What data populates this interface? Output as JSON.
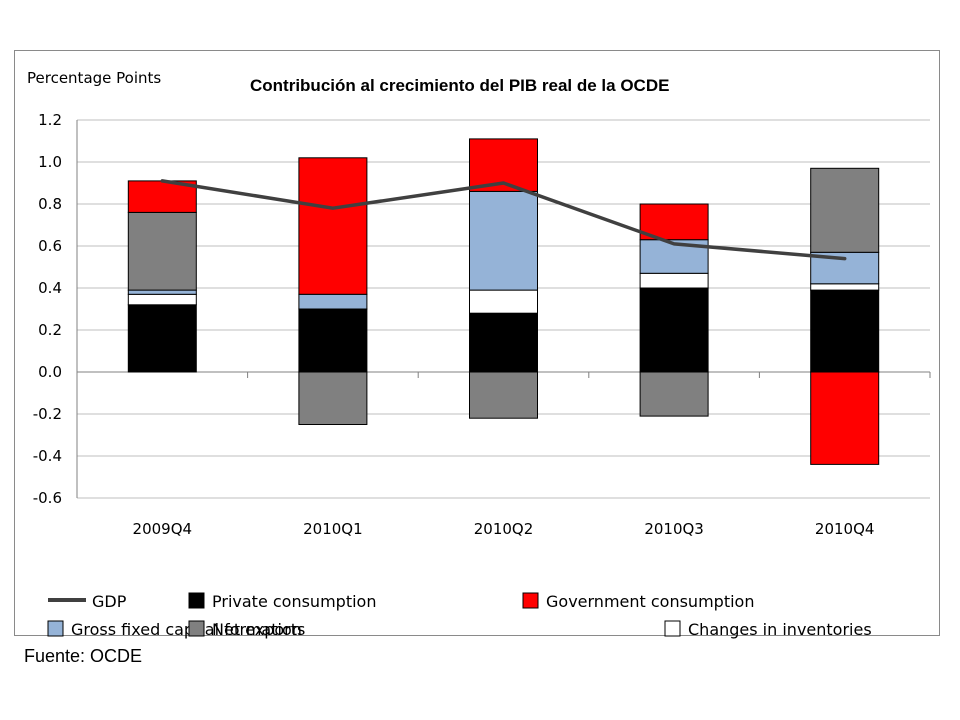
{
  "title": "Contribución al crecimiento del PIB real de la OCDE",
  "source": "Fuente: OCDE",
  "chart_data": {
    "type": "bar",
    "stacked": true,
    "ylabel": "Percentage Points",
    "ylim": [
      -0.6,
      1.2
    ],
    "yticks": [
      "1.2",
      "1.0",
      "0.8",
      "0.6",
      "0.4",
      "0.2",
      "0.0",
      "-0.2",
      "-0.4",
      "-0.6"
    ],
    "grid": true,
    "categories": [
      "2009Q4",
      "2010Q1",
      "2010Q2",
      "2010Q3",
      "2010Q4"
    ],
    "series": [
      {
        "name": "Private consumption",
        "color": "#000000",
        "values": [
          0.32,
          0.3,
          0.28,
          0.4,
          0.39
        ]
      },
      {
        "name": "Changes in inventories",
        "color": "#ffffff",
        "values": [
          0.05,
          0.0,
          0.11,
          0.07,
          0.03
        ]
      },
      {
        "name": "Gross fixed capital formation",
        "color": "#95b3d7",
        "values": [
          0.02,
          0.07,
          0.47,
          0.16,
          0.15
        ]
      },
      {
        "name": "Net exports",
        "color": "#808080",
        "values": [
          0.37,
          -0.25,
          -0.22,
          -0.21,
          0.4
        ]
      },
      {
        "name": "Government consumption",
        "color": "#ff0000",
        "values": [
          0.15,
          0.65,
          0.25,
          0.17,
          -0.44
        ]
      }
    ],
    "line": {
      "name": "GDP",
      "color": "#404040",
      "values": [
        0.91,
        0.78,
        0.9,
        0.61,
        0.54
      ]
    },
    "legend": {
      "position": "bottom",
      "rows": [
        [
          {
            "label": "GDP",
            "kind": "line",
            "color": "#404040"
          },
          {
            "label": "Private consumption",
            "kind": "box",
            "color": "#000000"
          },
          {
            "label": "Government consumption",
            "kind": "box",
            "color": "#ff0000"
          }
        ],
        [
          {
            "label": "Gross fixed capital formation",
            "kind": "box",
            "color": "#95b3d7"
          },
          {
            "label": "Net exports",
            "kind": "box",
            "color": "#808080"
          },
          {
            "label": "Changes in inventories",
            "kind": "box",
            "color": "#ffffff"
          }
        ]
      ]
    }
  }
}
